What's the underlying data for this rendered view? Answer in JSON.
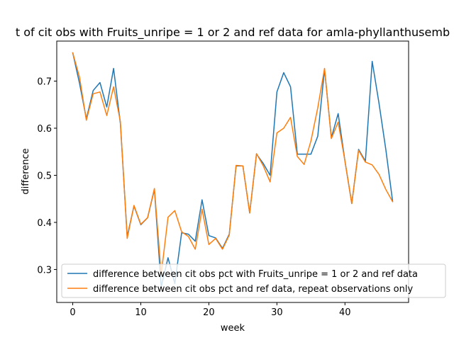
{
  "chart_data": {
    "type": "line",
    "title": "t of cit obs with Fruits_unripe = 1 or 2 and ref data for amla-phyllanthusemb",
    "xlabel": "week",
    "ylabel": "difference",
    "xlim": [
      -2.35,
      49.35
    ],
    "ylim": [
      0.23,
      0.785
    ],
    "xticks": [
      0,
      10,
      20,
      30,
      40
    ],
    "yticks": [
      0.3,
      0.4,
      0.5,
      0.6,
      0.7
    ],
    "xtick_labels": [
      "0",
      "10",
      "20",
      "30",
      "40"
    ],
    "ytick_labels": [
      "0.3",
      "0.4",
      "0.5",
      "0.6",
      "0.7"
    ],
    "legend_position": "lower right",
    "x": [
      0,
      1,
      2,
      3,
      4,
      5,
      6,
      7,
      8,
      9,
      10,
      11,
      12,
      13,
      14,
      15,
      16,
      17,
      18,
      19,
      20,
      21,
      22,
      23,
      24,
      25,
      26,
      27,
      28,
      29,
      30,
      31,
      32,
      33,
      34,
      35,
      36,
      37,
      38,
      39,
      40,
      41,
      42,
      43,
      44,
      45,
      46,
      47
    ],
    "series": [
      {
        "name": "difference between cit obs pct with Fruits_unripe = 1 or 2 and ref data",
        "color": "#1f77b4",
        "values": [
          0.76,
          0.695,
          0.62,
          0.68,
          0.697,
          0.645,
          0.727,
          0.61,
          0.37,
          0.435,
          0.395,
          0.41,
          0.47,
          0.263,
          0.325,
          0.27,
          0.378,
          0.375,
          0.36,
          0.448,
          0.372,
          0.367,
          0.345,
          0.375,
          0.52,
          0.52,
          0.42,
          0.545,
          0.525,
          0.5,
          0.677,
          0.718,
          0.688,
          0.545,
          0.545,
          0.545,
          0.583,
          0.725,
          0.58,
          0.631,
          0.53,
          0.44,
          0.555,
          0.53,
          0.742,
          0.653,
          0.555,
          0.445
        ]
      },
      {
        "name": "difference between cit obs pct and ref data, repeat observations only",
        "color": "#ff7f0e",
        "values": [
          0.76,
          0.708,
          0.617,
          0.673,
          0.677,
          0.627,
          0.688,
          0.614,
          0.366,
          0.436,
          0.396,
          0.41,
          0.472,
          0.29,
          0.411,
          0.425,
          0.38,
          0.37,
          0.343,
          0.428,
          0.353,
          0.366,
          0.343,
          0.373,
          0.521,
          0.52,
          0.42,
          0.546,
          0.52,
          0.486,
          0.59,
          0.6,
          0.623,
          0.54,
          0.523,
          0.573,
          0.643,
          0.727,
          0.578,
          0.613,
          0.53,
          0.44,
          0.553,
          0.528,
          0.522,
          0.502,
          0.47,
          0.444
        ]
      }
    ]
  }
}
